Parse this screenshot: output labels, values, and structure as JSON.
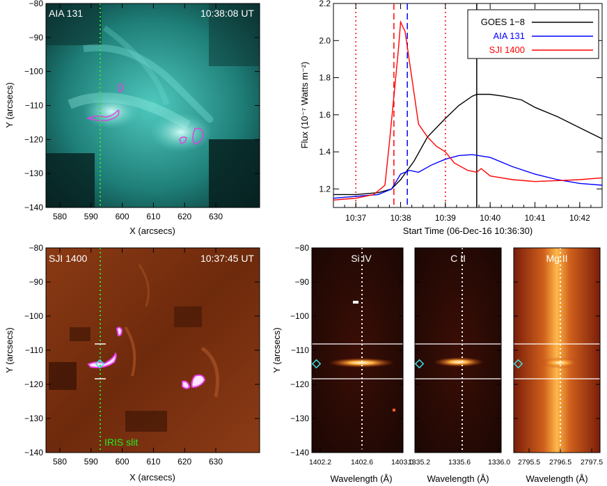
{
  "figure": {
    "panel_aia": {
      "channel": "AIA 131",
      "time": "10:38:08 UT"
    },
    "panel_sji": {
      "channel": "SJI 1400",
      "time": "10:37:45 UT",
      "slit_label": "IRIS slit"
    },
    "image_axes": {
      "xlabel": "X (arcsecs)",
      "ylabel": "Y (arcsecs)",
      "xticks": [
        "580",
        "590",
        "600",
        "610",
        "620",
        "630"
      ],
      "yticks": [
        "−80",
        "−90",
        "−100",
        "−110",
        "−120",
        "−130",
        "−140"
      ]
    },
    "spectra": [
      {
        "name": "Si IV",
        "xticks": [
          "1402.2",
          "1402.6",
          "1403.0"
        ],
        "xlabel": "Wavelength (Å)"
      },
      {
        "name": "C II",
        "xticks": [
          "1335.2",
          "1335.6",
          "1336.0"
        ],
        "xlabel": "Wavelength (Å)"
      },
      {
        "name": "Mg II",
        "xticks": [
          "2795.5",
          "2796.5",
          "2797.5"
        ],
        "xlabel": "Wavelength (Å)"
      }
    ],
    "spectra_ylabel": "Y (arcsecs)",
    "spectra_yticks": [
      "−80",
      "−90",
      "−100",
      "−110",
      "−120",
      "−130",
      "−140"
    ]
  },
  "chart_data": {
    "type": "line",
    "xlabel": "Start Time (06-Dec-16 10:36:30)",
    "ylabel": "Flux (10⁻⁷ Watts m⁻²)",
    "xlim": [
      36.5,
      42.5
    ],
    "ylim": [
      1.1,
      2.2
    ],
    "xticks": [
      {
        "v": 37,
        "label": "10:37"
      },
      {
        "v": 38,
        "label": "10:38"
      },
      {
        "v": 39,
        "label": "10:39"
      },
      {
        "v": 40,
        "label": "10:40"
      },
      {
        "v": 41,
        "label": "10:41"
      },
      {
        "v": 42,
        "label": "10:42"
      }
    ],
    "yticks": [
      {
        "v": 1.2,
        "label": "1.2"
      },
      {
        "v": 1.4,
        "label": "1.4"
      },
      {
        "v": 1.6,
        "label": "1.6"
      },
      {
        "v": 1.8,
        "label": "1.8"
      },
      {
        "v": 2.0,
        "label": "2.0"
      },
      {
        "v": 2.2,
        "label": "2.2"
      }
    ],
    "legend_position": "top-right",
    "series": [
      {
        "name": "GOES 1−8",
        "color": "#000000",
        "x": [
          36.5,
          37.0,
          37.5,
          37.8,
          38.0,
          38.3,
          38.6,
          39.0,
          39.3,
          39.6,
          39.7,
          40.0,
          40.3,
          40.7,
          41.0,
          41.5,
          42.0,
          42.5
        ],
        "y": [
          1.17,
          1.17,
          1.18,
          1.2,
          1.25,
          1.35,
          1.48,
          1.58,
          1.65,
          1.7,
          1.71,
          1.71,
          1.7,
          1.68,
          1.64,
          1.59,
          1.53,
          1.47
        ]
      },
      {
        "name": "AIA 131",
        "color": "#0000ff",
        "x": [
          36.5,
          37.0,
          37.5,
          37.8,
          38.0,
          38.2,
          38.4,
          38.7,
          39.0,
          39.3,
          39.6,
          40.0,
          40.5,
          41.0,
          41.5,
          42.0,
          42.5
        ],
        "y": [
          1.15,
          1.16,
          1.17,
          1.2,
          1.28,
          1.3,
          1.29,
          1.33,
          1.36,
          1.38,
          1.385,
          1.37,
          1.32,
          1.28,
          1.25,
          1.23,
          1.22
        ]
      },
      {
        "name": "SJI 1400",
        "color": "#ff0000",
        "x": [
          36.5,
          37.0,
          37.4,
          37.65,
          37.75,
          37.85,
          37.95,
          38.0,
          38.1,
          38.25,
          38.4,
          38.6,
          38.8,
          39.0,
          39.2,
          39.5,
          39.7,
          39.8,
          40.0,
          40.5,
          41.0,
          41.5,
          42.0,
          42.5
        ],
        "y": [
          1.14,
          1.15,
          1.17,
          1.22,
          1.45,
          1.7,
          1.95,
          2.1,
          2.05,
          1.8,
          1.55,
          1.48,
          1.43,
          1.4,
          1.34,
          1.3,
          1.29,
          1.31,
          1.27,
          1.25,
          1.24,
          1.245,
          1.25,
          1.26
        ]
      }
    ],
    "vlines": [
      {
        "x": 37.0,
        "style": "dotted",
        "color": "#ff0000"
      },
      {
        "x": 37.85,
        "style": "dashed",
        "color": "#ff0000"
      },
      {
        "x": 38.15,
        "style": "dashed",
        "color": "#0000ff"
      },
      {
        "x": 39.0,
        "style": "dotted",
        "color": "#ff0000"
      },
      {
        "x": 39.7,
        "style": "solid",
        "color": "#000000"
      }
    ]
  }
}
